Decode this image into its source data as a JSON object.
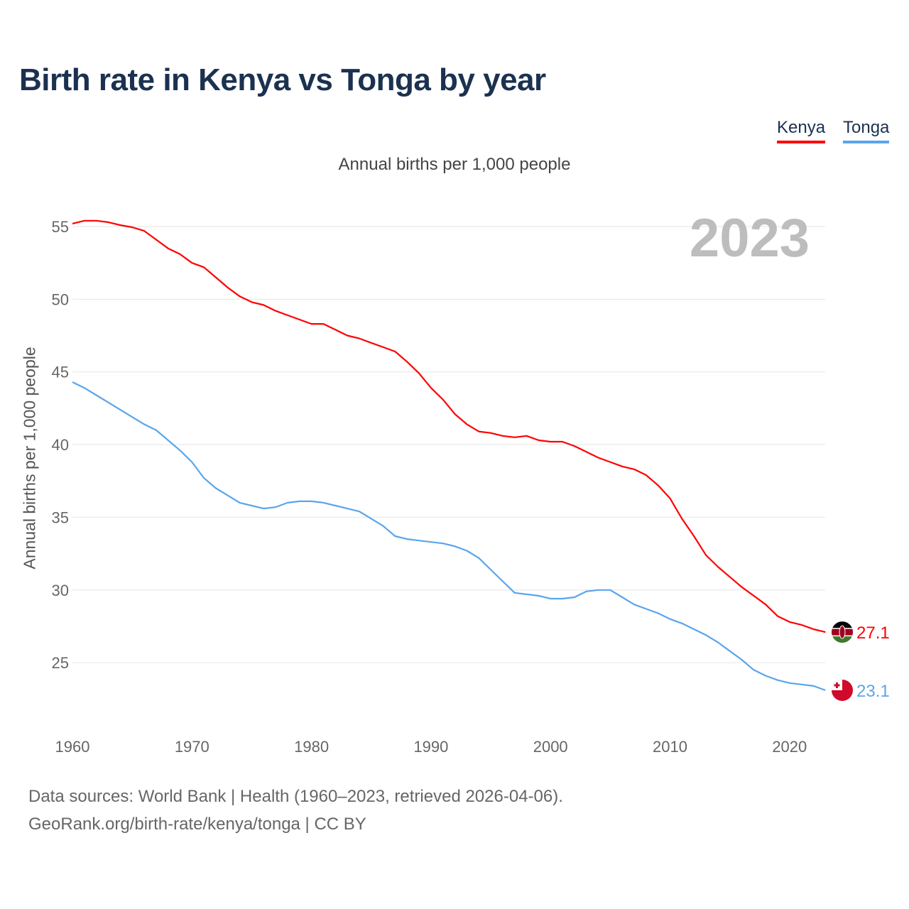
{
  "chart_data": {
    "type": "line",
    "title": "Birth rate in Kenya vs Tonga by year",
    "subtitle": "Annual births per 1,000 people",
    "ylabel": "Annual births per 1,000 people",
    "xlabel": "",
    "highlight_year": "2023",
    "xlim": [
      1960,
      2023
    ],
    "ylim": [
      20.5,
      56
    ],
    "yticks": [
      25,
      30,
      35,
      40,
      45,
      50,
      55
    ],
    "xticks": [
      1960,
      1970,
      1980,
      1990,
      2000,
      2010,
      2020
    ],
    "grid": true,
    "legend_position": "top-right",
    "x_start": 1960,
    "series": [
      {
        "name": "Kenya",
        "color": "#ff0000",
        "end_label": "27.1",
        "flag": "kenya-flag",
        "values": [
          55.2,
          55.4,
          55.4,
          55.3,
          55.1,
          54.95,
          54.7,
          54.1,
          53.5,
          53.1,
          52.5,
          52.2,
          51.5,
          50.8,
          50.2,
          49.8,
          49.6,
          49.2,
          48.9,
          48.6,
          48.3,
          48.3,
          47.9,
          47.5,
          47.3,
          47.0,
          46.7,
          46.4,
          45.7,
          44.9,
          43.9,
          43.1,
          42.1,
          41.4,
          40.9,
          40.8,
          40.6,
          40.5,
          40.6,
          40.3,
          40.2,
          40.2,
          39.9,
          39.5,
          39.1,
          38.8,
          38.5,
          38.3,
          37.9,
          37.2,
          36.3,
          34.9,
          33.7,
          32.4,
          31.6,
          30.9,
          30.2,
          29.6,
          29.0,
          28.2,
          27.8,
          27.6,
          27.3,
          27.1
        ]
      },
      {
        "name": "Tonga",
        "color": "#5aa5ec",
        "end_label": "23.1",
        "flag": "tonga-flag",
        "values": [
          44.3,
          43.9,
          43.4,
          42.9,
          42.4,
          41.9,
          41.4,
          41.0,
          40.3,
          39.6,
          38.8,
          37.7,
          37.0,
          36.5,
          36.0,
          35.8,
          35.6,
          35.7,
          36.0,
          36.1,
          36.1,
          36.0,
          35.8,
          35.6,
          35.4,
          34.9,
          34.4,
          33.7,
          33.5,
          33.4,
          33.3,
          33.2,
          33.0,
          32.7,
          32.2,
          31.4,
          30.6,
          29.8,
          29.7,
          29.6,
          29.4,
          29.4,
          29.5,
          29.9,
          30.0,
          30.0,
          29.5,
          29.0,
          28.7,
          28.4,
          28.0,
          27.7,
          27.3,
          26.9,
          26.4,
          25.8,
          25.2,
          24.5,
          24.1,
          23.8,
          23.6,
          23.5,
          23.4,
          23.1
        ]
      }
    ]
  },
  "footer": {
    "line1": "Data sources: World Bank | Health (1960–2023, retrieved 2026-04-06).",
    "line2": "GeoRank.org/birth-rate/kenya/tonga | CC BY"
  }
}
